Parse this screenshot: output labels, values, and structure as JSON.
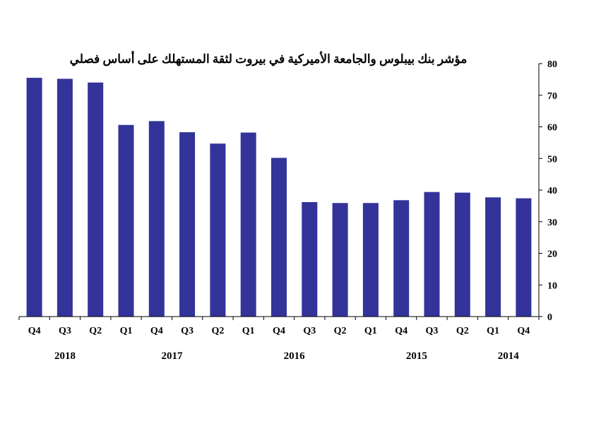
{
  "chart_data": {
    "type": "bar",
    "title": "مؤشر بنك بيبلوس والجامعة الأميركية في بيروت لثقة المستهلك على أساس فصلي",
    "categories": [
      "Q4",
      "Q3",
      "Q2",
      "Q1",
      "Q4",
      "Q3",
      "Q2",
      "Q1",
      "Q4",
      "Q3",
      "Q2",
      "Q1",
      "Q4",
      "Q3",
      "Q2",
      "Q1",
      "Q4"
    ],
    "values": [
      75.5,
      75.2,
      74.0,
      60.6,
      61.8,
      58.3,
      54.7,
      58.2,
      50.2,
      36.2,
      35.9,
      35.9,
      36.8,
      39.4,
      39.2,
      37.7,
      37.4
    ],
    "groups": [
      {
        "label": "2018",
        "categories": [
          "Q4",
          "Q3",
          "Q2"
        ]
      },
      {
        "label": "2017",
        "categories": [
          "Q1",
          "Q4",
          "Q3",
          "Q2"
        ]
      },
      {
        "label": "2016",
        "categories": [
          "Q1",
          "Q4",
          "Q3",
          "Q2"
        ]
      },
      {
        "label": "2015",
        "categories": [
          "Q1",
          "Q4",
          "Q3",
          "Q2"
        ]
      },
      {
        "label": "2014",
        "categories": [
          "Q1",
          "Q4"
        ]
      }
    ],
    "y_ticks": [
      "0",
      "10",
      "20",
      "30",
      "40",
      "50",
      "60",
      "70",
      "80"
    ],
    "ylim": [
      0,
      80
    ],
    "y_axis_side": "right",
    "grid": false,
    "colors": {
      "bar": "#33339a",
      "axis": "#000000"
    }
  }
}
